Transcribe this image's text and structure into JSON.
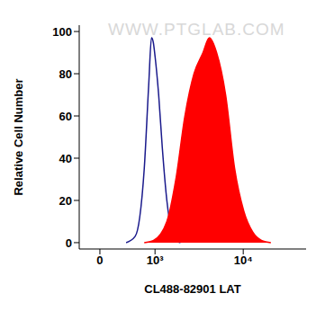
{
  "chart_data": {
    "type": "area",
    "x_label": "CL488-82901 LAT",
    "y_label": "Relative Cell Number",
    "annotations": [
      "WWW.PTGLAB.COM"
    ],
    "xlim": [
      -240,
      43000
    ],
    "xticks": [
      0,
      {
        "value": 1000,
        "label": "10³"
      },
      {
        "value": 10000,
        "label": "10⁴"
      }
    ],
    "ylim": [
      -3,
      103
    ],
    "yticks": [
      0,
      20,
      40,
      60,
      80,
      100
    ],
    "grid": false,
    "series": [
      {
        "color": "#1a1a8c",
        "fill": false,
        "x": [
          326,
          492,
          589,
          696,
          814,
          892,
          945,
          1003,
          1121,
          1252,
          1432,
          1629,
          1849,
          2095
        ],
        "values": [
          0,
          3,
          12,
          35,
          75,
          97,
          95,
          88,
          70,
          45,
          20,
          6,
          1,
          0
        ]
      },
      {
        "color": "#ff0000",
        "fill": true,
        "x": [
          696,
          945,
          1432,
          1849,
          2362,
          2995,
          3768,
          4412,
          5276,
          6568,
          8157,
          10121,
          12512,
          15457,
          19080
        ],
        "values": [
          0,
          1,
          10,
          30,
          60,
          80,
          90,
          97,
          90,
          70,
          35,
          15,
          5,
          1,
          0
        ]
      }
    ]
  }
}
